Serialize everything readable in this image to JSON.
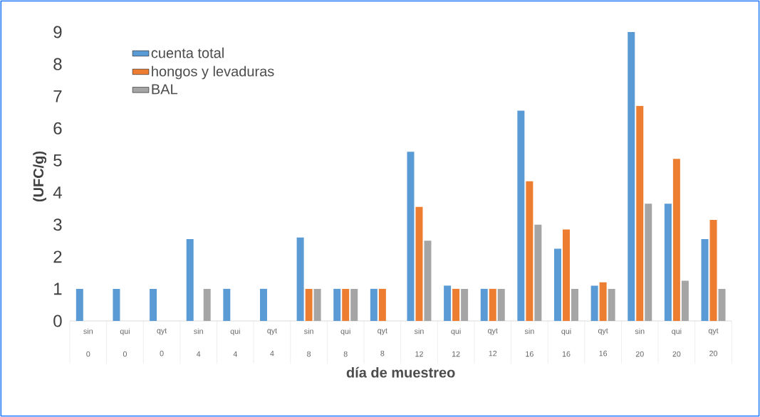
{
  "chart_data": {
    "type": "bar",
    "xlabel": "día de muestreo",
    "ylabel": "(UFC/g)",
    "categories": [
      "sin 0",
      "qui 0",
      "qyt 0",
      "sin 4",
      "qui 4",
      "qyt 4",
      "sin 8",
      "qui 8",
      "qyt 8",
      "sin 12",
      "qui 12",
      "qyt 12",
      "sin 16",
      "qui 16",
      "qyt 16",
      "sin 20",
      "qui 20",
      "qyt 20"
    ],
    "series": [
      {
        "name": "cuenta total",
        "color": "#5b9bd5",
        "values": [
          1,
          1,
          1,
          2.55,
          1,
          1,
          2.6,
          1,
          1,
          5.27,
          1.1,
          1,
          6.55,
          2.25,
          1.1,
          9,
          3.65,
          2.55
        ]
      },
      {
        "name": "hongos y levaduras",
        "color": "#ed7d31",
        "values": [
          null,
          null,
          null,
          null,
          null,
          null,
          1,
          1,
          1,
          3.55,
          1,
          1,
          4.35,
          2.85,
          1.2,
          6.7,
          5.05,
          3.15
        ]
      },
      {
        "name": "BAL",
        "color": "#a5a5a5",
        "values": [
          null,
          null,
          null,
          1,
          null,
          null,
          1,
          1,
          null,
          2.5,
          1,
          1,
          3,
          1,
          1,
          3.65,
          1.25,
          1
        ]
      }
    ],
    "ylim": [
      0,
      9
    ],
    "yticks": [
      0,
      1,
      2,
      3,
      4,
      5,
      6,
      7,
      8,
      9
    ],
    "legend": "top left"
  }
}
